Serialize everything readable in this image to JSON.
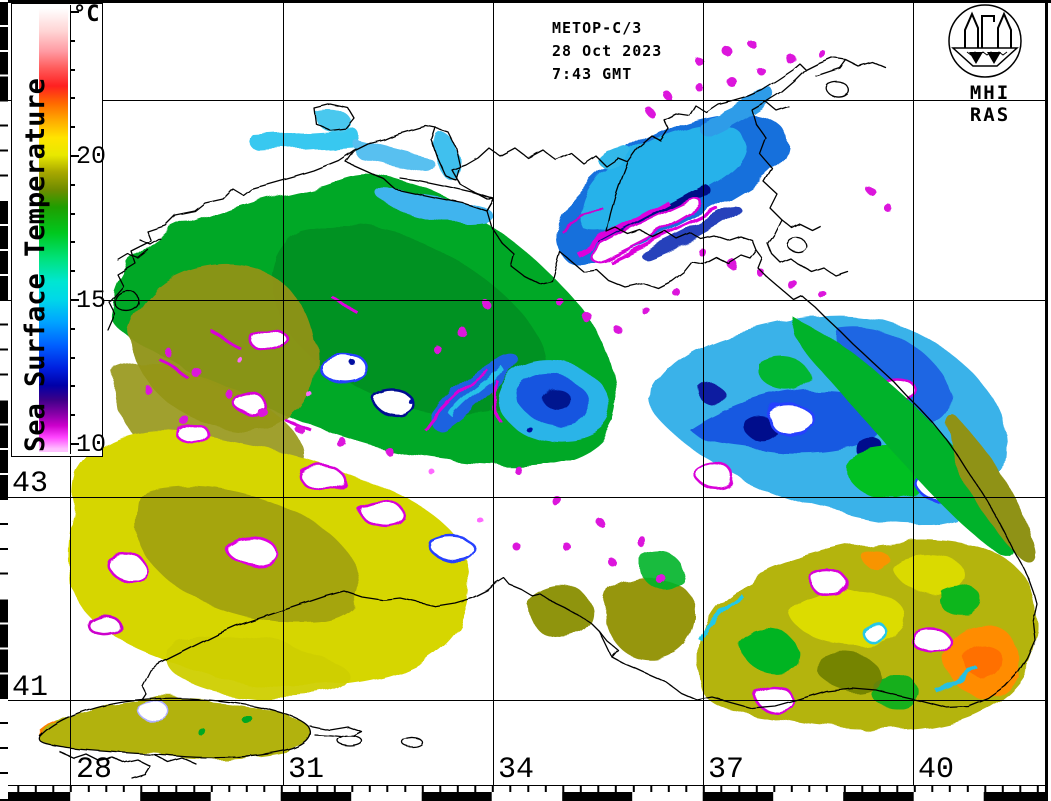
{
  "header": {
    "satellite": "METOP-C/3",
    "date": "28 Oct 2023",
    "time": "7:43 GMT"
  },
  "logo": {
    "label": "MHI RAS"
  },
  "colorbar": {
    "title": "Sea Surface Temperature",
    "unit": "°C",
    "min_c": 10,
    "max_c": 25,
    "tick_step_c": 1,
    "labeled_ticks": [
      20,
      15,
      10
    ],
    "palette": [
      {
        "t": 25.1,
        "color": "#ffffff"
      },
      {
        "t": 24.3,
        "color": "#ffd4d4"
      },
      {
        "t": 23.6,
        "color": "#ff9aa2"
      },
      {
        "t": 23.0,
        "color": "#ff5a5a"
      },
      {
        "t": 22.4,
        "color": "#ff2020"
      },
      {
        "t": 21.8,
        "color": "#ff6a00"
      },
      {
        "t": 21.2,
        "color": "#ffaa00"
      },
      {
        "t": 20.6,
        "color": "#ffe400"
      },
      {
        "t": 20.0,
        "color": "#e8e800"
      },
      {
        "t": 19.4,
        "color": "#a8a800"
      },
      {
        "t": 18.8,
        "color": "#6f8c00"
      },
      {
        "t": 18.2,
        "color": "#1f9e00"
      },
      {
        "t": 17.3,
        "color": "#00c81e"
      },
      {
        "t": 16.4,
        "color": "#00e27c"
      },
      {
        "t": 15.6,
        "color": "#00e6d2"
      },
      {
        "t": 15.0,
        "color": "#00d8e8"
      },
      {
        "t": 14.2,
        "color": "#00a4ff"
      },
      {
        "t": 13.4,
        "color": "#0060ff"
      },
      {
        "t": 12.6,
        "color": "#0020e0"
      },
      {
        "t": 12.0,
        "color": "#0000a8"
      },
      {
        "t": 11.5,
        "color": "#3c0088"
      },
      {
        "t": 11.0,
        "color": "#8800a8"
      },
      {
        "t": 10.6,
        "color": "#cc00cc"
      },
      {
        "t": 10.2,
        "color": "#ff44ff"
      },
      {
        "t": 9.8,
        "color": "#ffc0ff"
      }
    ]
  },
  "grid": {
    "latitude_labels": [
      {
        "label": "43"
      },
      {
        "label": "41"
      }
    ],
    "longitude_labels": [
      {
        "label": "28"
      },
      {
        "label": "31"
      },
      {
        "label": "34"
      },
      {
        "label": "37"
      },
      {
        "label": "40"
      }
    ]
  },
  "map": {
    "region": "Black Sea and Sea of Azov sea surface temperature",
    "cloud_mask_color": "#ffffff",
    "coastline_color": "#000000",
    "grid_color": "#000000",
    "feature_colors": {
      "nw_shelf_green": "#00a828",
      "west_basin_yellow": "#d6d600",
      "olive": "#9a9a10",
      "azov_blue": "#1470dc",
      "cold_cloud_edge_magenta": "#dc14dc",
      "east_cyan": "#30aee8",
      "southeast_orange": "#ff8c00"
    }
  }
}
